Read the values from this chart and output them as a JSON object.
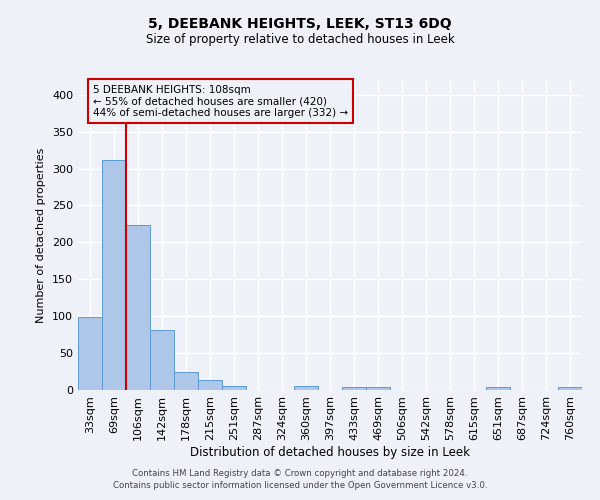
{
  "title": "5, DEEBANK HEIGHTS, LEEK, ST13 6DQ",
  "subtitle": "Size of property relative to detached houses in Leek",
  "xlabel": "Distribution of detached houses by size in Leek",
  "ylabel": "Number of detached properties",
  "bar_labels": [
    "33sqm",
    "69sqm",
    "106sqm",
    "142sqm",
    "178sqm",
    "215sqm",
    "251sqm",
    "287sqm",
    "324sqm",
    "360sqm",
    "397sqm",
    "433sqm",
    "469sqm",
    "506sqm",
    "542sqm",
    "578sqm",
    "615sqm",
    "651sqm",
    "687sqm",
    "724sqm",
    "760sqm"
  ],
  "bar_values": [
    99,
    312,
    224,
    81,
    25,
    14,
    6,
    0,
    0,
    5,
    0,
    4,
    4,
    0,
    0,
    0,
    0,
    4,
    0,
    0,
    4
  ],
  "bar_color": "#aec6e8",
  "bar_edgecolor": "#5b9bd5",
  "vline_color": "#cc0000",
  "vline_index": 2,
  "ylim": [
    0,
    420
  ],
  "yticks": [
    0,
    50,
    100,
    150,
    200,
    250,
    300,
    350,
    400
  ],
  "annotation_title": "5 DEEBANK HEIGHTS: 108sqm",
  "annotation_line1": "← 55% of detached houses are smaller (420)",
  "annotation_line2": "44% of semi-detached houses are larger (332) →",
  "annotation_box_color": "#cc0000",
  "footer_line1": "Contains HM Land Registry data © Crown copyright and database right 2024.",
  "footer_line2": "Contains public sector information licensed under the Open Government Licence v3.0.",
  "bg_color": "#eef2f8",
  "grid_color": "#ffffff"
}
